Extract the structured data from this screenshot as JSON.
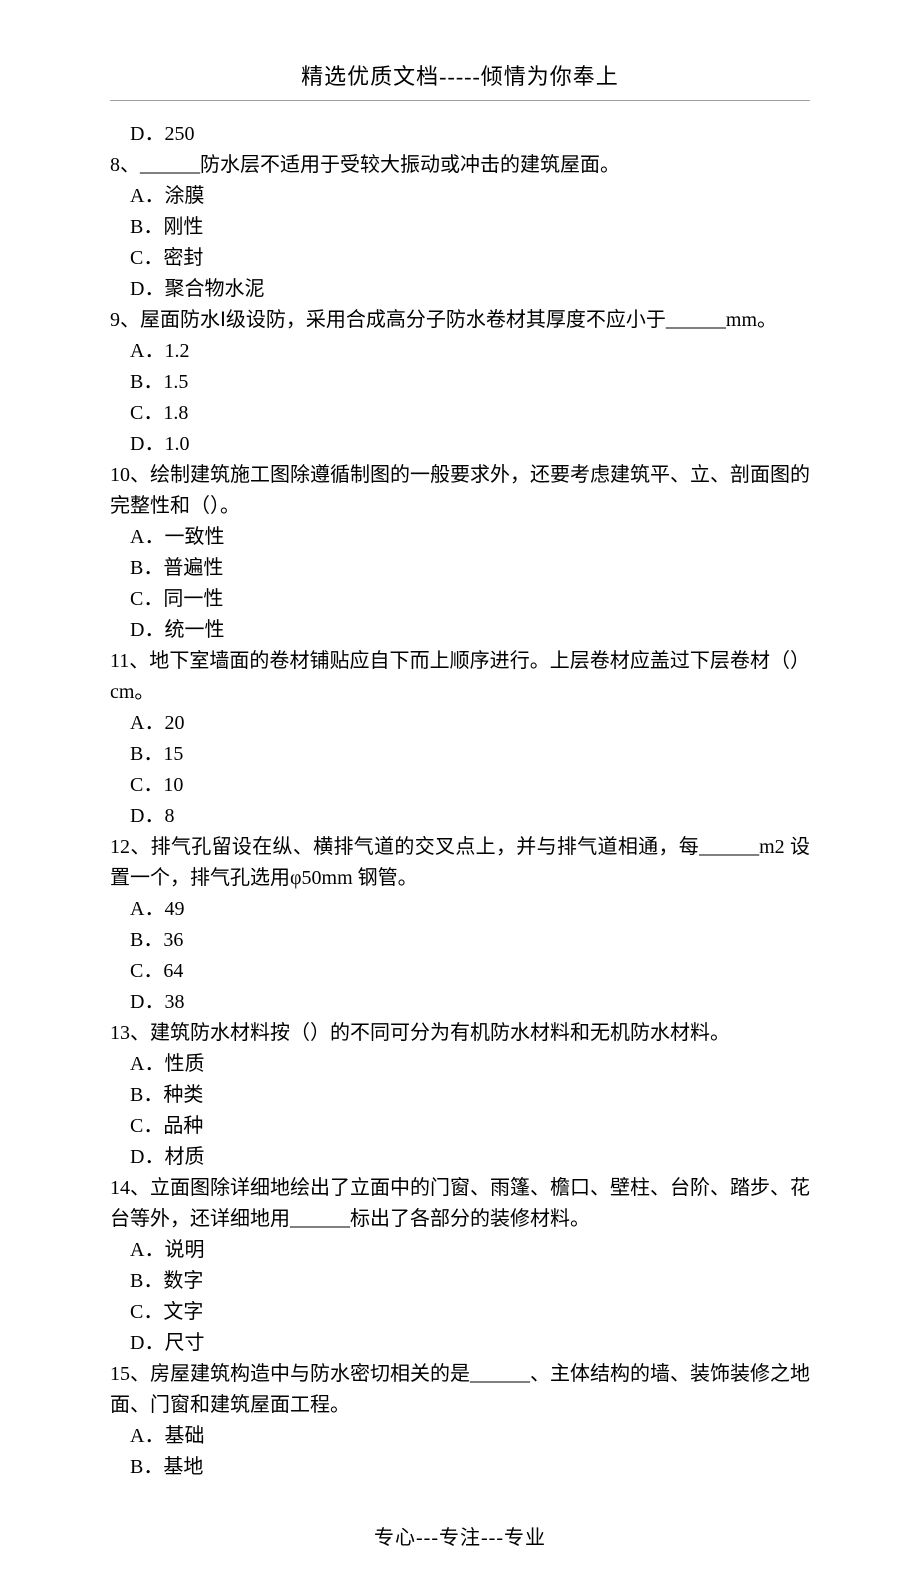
{
  "header": "精选优质文档-----倾情为你奉上",
  "footer": "专心---专注---专业",
  "lines": [
    {
      "cls": "option",
      "text": "D．250"
    },
    {
      "cls": "question",
      "text": "8、______防水层不适用于受较大振动或冲击的建筑屋面。"
    },
    {
      "cls": "option",
      "text": "A．涂膜"
    },
    {
      "cls": "option",
      "text": "B．刚性"
    },
    {
      "cls": "option",
      "text": "C．密封"
    },
    {
      "cls": "option",
      "text": "D．聚合物水泥"
    },
    {
      "cls": "question",
      "text": "9、屋面防水Ⅰ级设防，采用合成高分子防水卷材其厚度不应小于______mm。"
    },
    {
      "cls": "option",
      "text": "A．1.2"
    },
    {
      "cls": "option",
      "text": "B．1.5"
    },
    {
      "cls": "option",
      "text": "C．1.8"
    },
    {
      "cls": "option",
      "text": "D．1.0"
    },
    {
      "cls": "question",
      "text": "10、绘制建筑施工图除遵循制图的一般要求外，还要考虑建筑平、立、剖面图的完整性和（）。"
    },
    {
      "cls": "option",
      "text": "A．一致性"
    },
    {
      "cls": "option",
      "text": "B．普遍性"
    },
    {
      "cls": "option",
      "text": "C．同一性"
    },
    {
      "cls": "option",
      "text": "D．统一性"
    },
    {
      "cls": "question",
      "text": "11、地下室墙面的卷材铺贴应自下而上顺序进行。上层卷材应盖过下层卷材（）cm。"
    },
    {
      "cls": "option",
      "text": "A．20"
    },
    {
      "cls": "option",
      "text": "B．15"
    },
    {
      "cls": "option",
      "text": "C．10"
    },
    {
      "cls": "option",
      "text": "D．8"
    },
    {
      "cls": "question",
      "text": "12、排气孔留设在纵、横排气道的交叉点上，并与排气道相通，每______m2 设置一个，排气孔选用φ50mm 钢管。"
    },
    {
      "cls": "option",
      "text": "A．49"
    },
    {
      "cls": "option",
      "text": "B．36"
    },
    {
      "cls": "option",
      "text": "C．64"
    },
    {
      "cls": "option",
      "text": "D．38"
    },
    {
      "cls": "question",
      "text": "13、建筑防水材料按（）的不同可分为有机防水材料和无机防水材料。"
    },
    {
      "cls": "option",
      "text": "A．性质"
    },
    {
      "cls": "option",
      "text": "B．种类"
    },
    {
      "cls": "option",
      "text": "C．品种"
    },
    {
      "cls": "option",
      "text": "D．材质"
    },
    {
      "cls": "question",
      "text": "14、立面图除详细地绘出了立面中的门窗、雨篷、檐口、壁柱、台阶、踏步、花台等外，还详细地用______标出了各部分的装修材料。"
    },
    {
      "cls": "option",
      "text": "A．说明"
    },
    {
      "cls": "option",
      "text": "B．数字"
    },
    {
      "cls": "option",
      "text": "C．文字"
    },
    {
      "cls": "option",
      "text": "D．尺寸"
    },
    {
      "cls": "question",
      "text": "15、房屋建筑构造中与防水密切相关的是______、主体结构的墙、装饰装修之地面、门窗和建筑屋面工程。"
    },
    {
      "cls": "option",
      "text": "A．基础"
    },
    {
      "cls": "option",
      "text": "B．基地"
    }
  ]
}
